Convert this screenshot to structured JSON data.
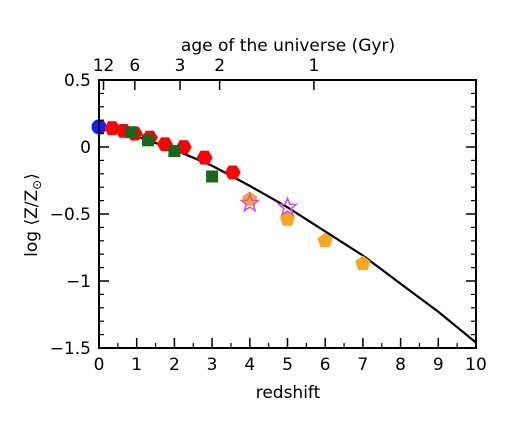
{
  "chart_data": {
    "type": "scatter",
    "xlabel": "redshift",
    "ylabel_main": "log ⟨Z/Z",
    "ylabel_sub": "⊙",
    "ylabel_close": "⟩",
    "top_axis_label": "age of the universe (Gyr)",
    "xlim": [
      0,
      10
    ],
    "ylim": [
      -1.5,
      0.5
    ],
    "x_ticks": [
      0,
      1,
      2,
      3,
      4,
      5,
      6,
      7,
      8,
      9,
      10
    ],
    "x_tick_labels": [
      "0",
      "1",
      "2",
      "3",
      "4",
      "5",
      "6",
      "7",
      "8",
      "9",
      "10"
    ],
    "y_ticks": [
      0.5,
      0,
      -0.5,
      -1,
      -1.5
    ],
    "y_tick_labels": [
      "0.5",
      "0",
      "−0.5",
      "−1",
      "−1.5"
    ],
    "top_ticks": [
      {
        "label": "12",
        "z": 0.12
      },
      {
        "label": "6",
        "z": 0.95
      },
      {
        "label": "3",
        "z": 2.15
      },
      {
        "label": "2",
        "z": 3.2
      },
      {
        "label": "1",
        "z": 5.7
      }
    ],
    "colors": {
      "axis": "#000000",
      "blue": "#1a1aff",
      "red": "#ff0000",
      "green": "#1a661a",
      "orange": "#f5a623",
      "magenta": "#d94fd9",
      "curve": "#000000"
    },
    "series": [
      {
        "marker": "circle",
        "color": "blue",
        "points": [
          [
            0.0,
            0.15
          ]
        ]
      },
      {
        "marker": "hexagon",
        "color": "red",
        "points": [
          [
            0.35,
            0.14
          ],
          [
            0.65,
            0.12
          ],
          [
            0.95,
            0.1
          ],
          [
            1.35,
            0.07
          ],
          [
            1.75,
            0.02
          ],
          [
            2.25,
            0.0
          ],
          [
            2.8,
            -0.08
          ],
          [
            3.55,
            -0.19
          ]
        ]
      },
      {
        "marker": "square",
        "color": "green",
        "points": [
          [
            0.85,
            0.11
          ],
          [
            1.3,
            0.05
          ],
          [
            2.0,
            -0.03
          ],
          [
            3.0,
            -0.22
          ]
        ]
      },
      {
        "marker": "pentagon",
        "color": "orange",
        "points": [
          [
            4.0,
            -0.39
          ],
          [
            5.0,
            -0.54
          ],
          [
            6.0,
            -0.7
          ],
          [
            7.0,
            -0.87
          ]
        ]
      },
      {
        "marker": "star",
        "color": "magenta",
        "points": [
          [
            4.0,
            -0.42
          ],
          [
            5.0,
            -0.45
          ]
        ]
      }
    ],
    "curve": {
      "x": [
        0,
        1,
        2,
        3,
        4,
        5,
        6,
        7,
        8,
        9,
        10
      ],
      "y": [
        0.15,
        0.08,
        -0.02,
        -0.14,
        -0.29,
        -0.45,
        -0.63,
        -0.81,
        -1.02,
        -1.23,
        -1.46
      ]
    }
  }
}
